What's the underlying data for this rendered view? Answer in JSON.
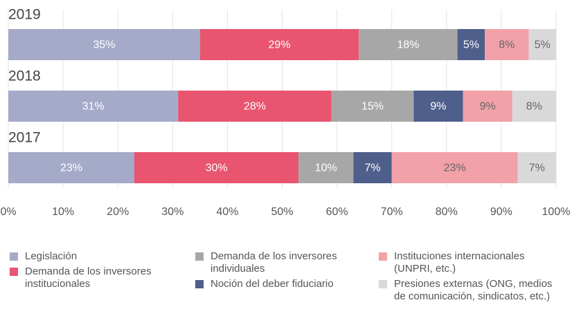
{
  "chart_data": {
    "type": "bar",
    "orientation": "horizontal",
    "stacked": true,
    "categories": [
      "2019",
      "2018",
      "2017"
    ],
    "series": [
      {
        "name": "Legislación",
        "color": "#a6aac9",
        "values": [
          35,
          31,
          23
        ],
        "value_labels": [
          "35%",
          "31%",
          "23%"
        ]
      },
      {
        "name": "Demanda de los inversores institucionales",
        "color": "#e9546f",
        "values": [
          29,
          28,
          30
        ],
        "value_labels": [
          "29%",
          "28%",
          "30%"
        ]
      },
      {
        "name": "Demanda de los inversores individuales",
        "color": "#a7a7a7",
        "values": [
          18,
          15,
          10
        ],
        "value_labels": [
          "18%",
          "15%",
          "10%"
        ]
      },
      {
        "name": "Noción del deber fiduciario",
        "color": "#4f5f8b",
        "values": [
          5,
          9,
          7
        ],
        "value_labels": [
          "5%",
          "9%",
          "7%"
        ]
      },
      {
        "name": "Instituciones internacionales (UNPRI, etc.)",
        "color": "#f1a1a7",
        "values": [
          8,
          9,
          23
        ],
        "value_labels": [
          "8%",
          "9%",
          "23%"
        ]
      },
      {
        "name": "Presiones externas (ONG, medios de comunicación, sindicatos, etc.)",
        "color": "#d9d9d9",
        "values": [
          5,
          8,
          7
        ],
        "value_labels": [
          "5%",
          "8%",
          "7%"
        ]
      }
    ],
    "xlim": [
      0,
      100
    ],
    "xticks": [
      {
        "value": 0,
        "label": "0%"
      },
      {
        "value": 10,
        "label": "10%"
      },
      {
        "value": 20,
        "label": "20%"
      },
      {
        "value": 30,
        "label": "30%"
      },
      {
        "value": 40,
        "label": "40%"
      },
      {
        "value": 50,
        "label": "50%"
      },
      {
        "value": 60,
        "label": "60%"
      },
      {
        "value": 70,
        "label": "70%"
      },
      {
        "value": 80,
        "label": "80%"
      },
      {
        "value": 90,
        "label": "90%"
      },
      {
        "value": 100,
        "label": "100%"
      }
    ],
    "grid": true
  }
}
